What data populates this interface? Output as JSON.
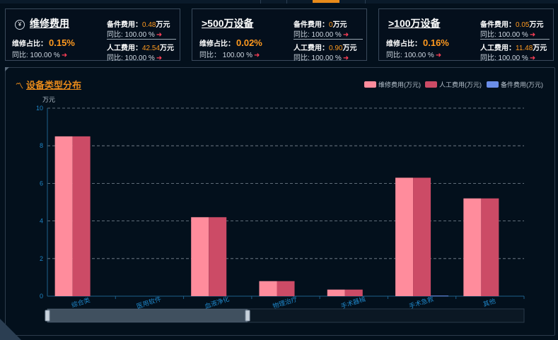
{
  "cards": [
    {
      "title": "维修费用",
      "icon": "yen-icon",
      "ratio_label": "维修占比：",
      "ratio_value": "0.15%",
      "yoy": "同比: 100.00 %",
      "parts_label": "备件费用：",
      "parts_value": "0.48",
      "parts_unit": "万元",
      "parts_yoy": "同比: 100.00 %",
      "labor_label": "人工费用：",
      "labor_value": "42.54",
      "labor_unit": "万元",
      "labor_yoy": "同比: 100.00 %"
    },
    {
      "title": ">500万设备",
      "ratio_label": "维修占比：",
      "ratio_value": "0.02%",
      "yoy": "同比：  100.00 %",
      "parts_label": "备件费用：",
      "parts_value": "0",
      "parts_unit": "万元",
      "parts_yoy": "同比: 100.00 %",
      "labor_label": "人工费用：",
      "labor_value": "0.90",
      "labor_unit": "万元",
      "labor_yoy": "同比: 100.00 %"
    },
    {
      "title": ">100万设备",
      "ratio_label": "维修占比：",
      "ratio_value": "0.16%",
      "yoy": "同比: 100.00 %",
      "parts_label": "备件费用：",
      "parts_value": "0.05",
      "parts_unit": "万元",
      "parts_yoy": "同比: 100.00 %",
      "labor_label": "人工费用：",
      "labor_value": "11.48",
      "labor_unit": "万元",
      "labor_yoy": "同比: 100.00 %"
    }
  ],
  "colors": {
    "accent": "#e88a1a",
    "value": "#ff9a1f",
    "up_arrow": "#ff3f57",
    "axis": "#1d5f8a",
    "axis_text": "#1f86c8",
    "grid": "#a8b4c0"
  },
  "chart_data": {
    "type": "bar",
    "title": "设备类型分布",
    "title_icon": "trend-icon",
    "ylabel": "万元",
    "ylim": [
      0,
      10
    ],
    "yticks": [
      0,
      2,
      4,
      6,
      8,
      10
    ],
    "grid": true,
    "legend_position": "top-right",
    "categories": [
      "综合类",
      "医用软件",
      "血液净化",
      "物理治疗",
      "手术器械",
      "手术急救",
      "其他"
    ],
    "series": [
      {
        "name": "维修费用(万元)",
        "color": "#ff8c9c",
        "values": [
          8.5,
          0,
          4.2,
          0.8,
          0.35,
          6.3,
          5.2
        ]
      },
      {
        "name": "人工费用(万元)",
        "color": "#cc4b66",
        "values": [
          8.5,
          0,
          4.2,
          0.8,
          0.35,
          6.3,
          5.2
        ]
      },
      {
        "name": "备件费用(万元)",
        "color": "#6b8ee8",
        "values": [
          0,
          0,
          0,
          0,
          0,
          0.03,
          0
        ]
      }
    ],
    "data_zoom": {
      "start": 0,
      "end": 0.42
    }
  }
}
